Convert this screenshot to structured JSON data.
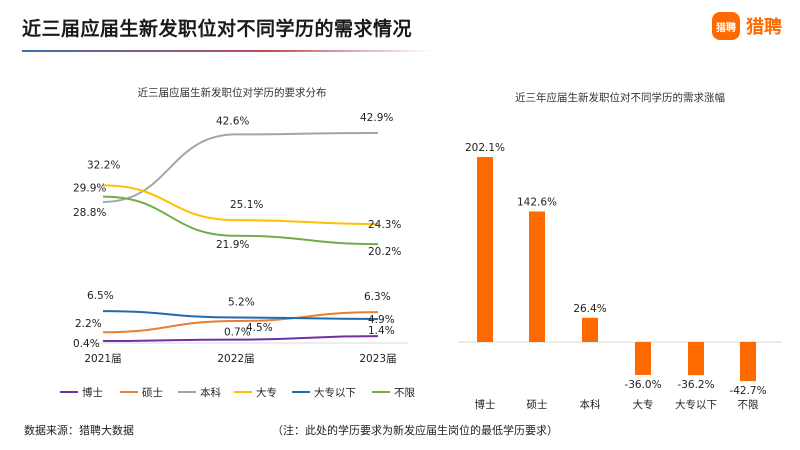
{
  "header": {
    "title": "近三届应届生新发职位对不同学历的需求情况",
    "logo_mark": "猎聘",
    "logo_text": "猎聘"
  },
  "footer": {
    "source": "数据来源：猎聘大数据",
    "note": "（注：此处的学历要求为新发应届生岗位的最低学历要求）"
  },
  "chart_data": [
    {
      "type": "line",
      "title": "近三届应届生新发职位对学历的要求分布",
      "categories": [
        "2021届",
        "2022届",
        "2023届"
      ],
      "series": [
        {
          "name": "博士",
          "color": "#7030a0",
          "values": [
            0.4,
            0.7,
            1.4
          ],
          "labels": [
            "0.4%",
            "0.7%",
            "1.4%"
          ]
        },
        {
          "name": "硕士",
          "color": "#ed7d31",
          "values": [
            2.2,
            4.5,
            6.3
          ],
          "labels": [
            "2.2%",
            "4.5%",
            "6.3%"
          ]
        },
        {
          "name": "本科",
          "color": "#a5a5a5",
          "values": [
            28.8,
            42.6,
            42.9
          ],
          "labels": [
            "28.8%",
            "42.6%",
            "42.9%"
          ]
        },
        {
          "name": "大专",
          "color": "#ffc000",
          "values": [
            32.2,
            25.1,
            24.3
          ],
          "labels": [
            "32.2%",
            "25.1%",
            "24.3%"
          ]
        },
        {
          "name": "大专以下",
          "color": "#1f6bb0",
          "values": [
            6.5,
            5.2,
            4.9
          ],
          "labels": [
            "6.5%",
            "5.2%",
            "4.9%"
          ]
        },
        {
          "name": "不限",
          "color": "#70ad47",
          "values": [
            29.9,
            21.9,
            20.2
          ],
          "labels": [
            "29.9%",
            "21.9%",
            "20.2%"
          ]
        }
      ],
      "legend_position": "bottom"
    },
    {
      "type": "bar",
      "title": "近三年应届生新发职位对不同学历的需求涨幅",
      "categories": [
        "博士",
        "硕士",
        "本科",
        "大专",
        "大专以下",
        "不限"
      ],
      "values": [
        202.1,
        142.6,
        26.4,
        -36.0,
        -36.2,
        -42.7
      ],
      "labels": [
        "202.1%",
        "142.6%",
        "26.4%",
        "-36.0%",
        "-36.2%",
        "-42.7%"
      ],
      "color": "#ff6a00"
    }
  ]
}
